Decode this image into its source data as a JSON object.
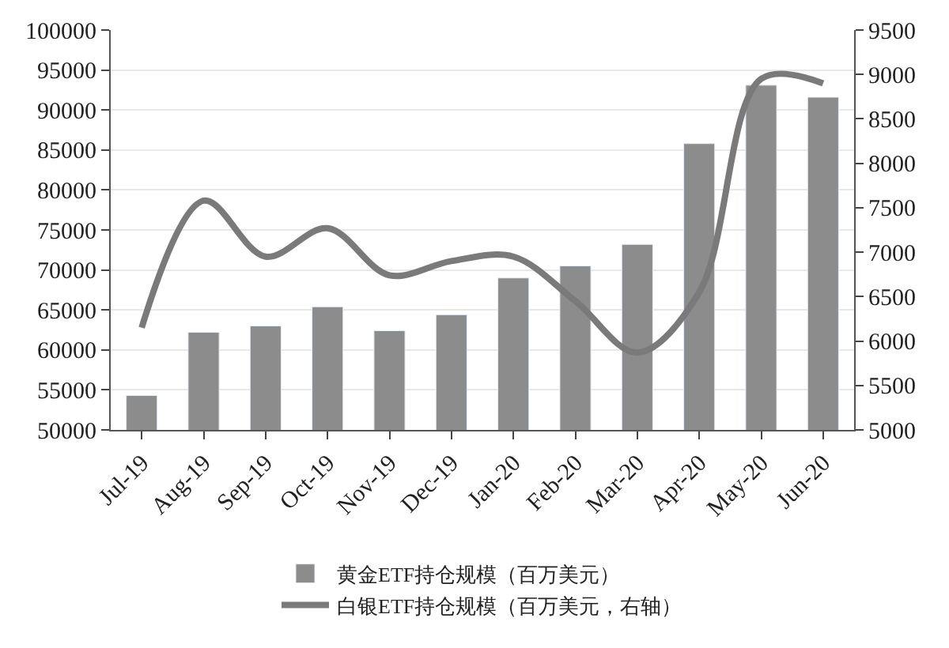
{
  "chart_data": {
    "type": "bar",
    "categories": [
      "Jul-19",
      "Aug-19",
      "Sep-19",
      "Oct-19",
      "Nov-19",
      "Dec-19",
      "Jan-20",
      "Feb-20",
      "Mar-20",
      "Apr-20",
      "May-20",
      "Jun-20"
    ],
    "series": [
      {
        "name": "黄金ETF持仓规模（百万美元）",
        "color": "#8c8c8c",
        "values": [
          54300,
          62200,
          63000,
          65400,
          62400,
          64400,
          69000,
          70500,
          73200,
          85800,
          93100,
          91600
        ]
      },
      {
        "name": "白银ETF持仓规模（百万美元，右轴）",
        "type": "line",
        "axis": "y2",
        "color": "#7a7a7a",
        "values": [
          6150,
          7580,
          6950,
          7270,
          6740,
          6900,
          6950,
          6450,
          5870,
          6550,
          8950,
          8900
        ]
      }
    ],
    "ylim": [
      50000,
      100000
    ],
    "yticks": [
      50000,
      55000,
      60000,
      65000,
      70000,
      75000,
      80000,
      85000,
      90000,
      95000,
      100000
    ],
    "y2lim": [
      5000,
      9500
    ],
    "y2ticks": [
      5000,
      5500,
      6000,
      6500,
      7000,
      7500,
      8000,
      8500,
      9000,
      9500
    ],
    "grid": "y",
    "legend": "bottom",
    "marker": "none",
    "line_style": "solid"
  }
}
